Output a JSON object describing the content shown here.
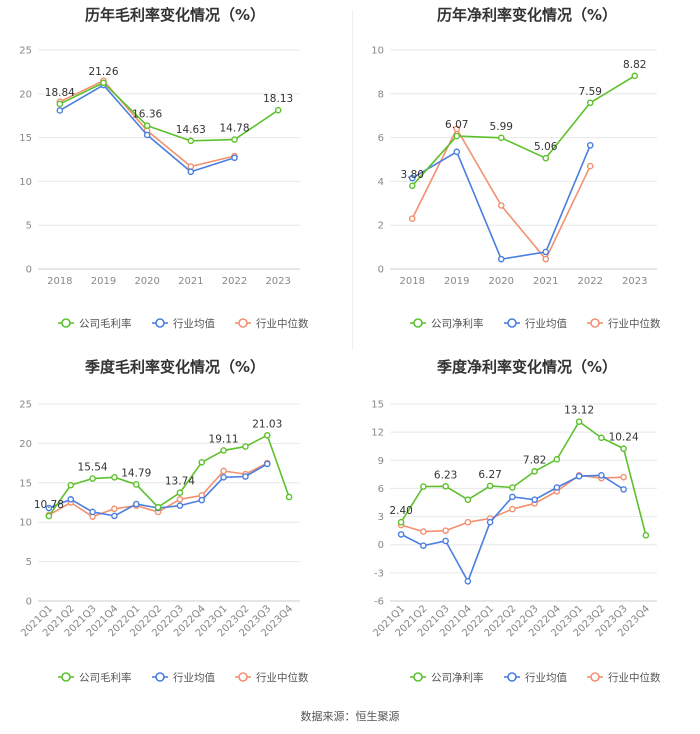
{
  "colors": {
    "company": "#5cc12b",
    "avg": "#4a7ee0",
    "median": "#f2906f",
    "grid": "#e8e8e8",
    "axis": "#cccccc"
  },
  "chart_data": [
    {
      "id": "annual-gross",
      "type": "line",
      "title": "历年毛利率变化情况（%）",
      "categories": [
        "2018",
        "2019",
        "2020",
        "2021",
        "2022",
        "2023"
      ],
      "ylim": [
        0,
        25
      ],
      "yticks": [
        0,
        5,
        10,
        15,
        20,
        25
      ],
      "ytick_labels": [
        "0",
        "5",
        "10",
        "15",
        "20",
        "25"
      ],
      "series": [
        {
          "key": "company",
          "name": "公司毛利率",
          "values": [
            18.84,
            21.26,
            16.36,
            14.63,
            14.78,
            18.13
          ],
          "labels": [
            "18.84",
            "21.26",
            "16.36",
            "14.63",
            "14.78",
            "18.13"
          ],
          "label_mask": [
            1,
            1,
            1,
            1,
            1,
            1
          ]
        },
        {
          "key": "avg",
          "name": "行业均值",
          "values": [
            18.1,
            21.0,
            15.3,
            11.1,
            12.7,
            null
          ]
        },
        {
          "key": "median",
          "name": "行业中位数",
          "values": [
            19.1,
            21.5,
            15.8,
            11.7,
            12.9,
            null
          ]
        }
      ]
    },
    {
      "id": "annual-net",
      "type": "line",
      "title": "历年净利率变化情况（%）",
      "categories": [
        "2018",
        "2019",
        "2020",
        "2021",
        "2022",
        "2023"
      ],
      "ylim": [
        0,
        10
      ],
      "yticks": [
        0,
        2,
        4,
        6,
        8,
        10
      ],
      "ytick_labels": [
        "0",
        "2",
        "4",
        "6",
        "8",
        "10"
      ],
      "series": [
        {
          "key": "company",
          "name": "公司净利率",
          "values": [
            3.8,
            6.07,
            5.99,
            5.06,
            7.59,
            8.82
          ],
          "labels": [
            "3.80",
            "6.07",
            "5.99",
            "5.06",
            "7.59",
            "8.82"
          ],
          "label_mask": [
            1,
            1,
            1,
            1,
            1,
            1
          ]
        },
        {
          "key": "avg",
          "name": "行业均值",
          "values": [
            4.15,
            5.35,
            0.45,
            0.78,
            5.65,
            null
          ]
        },
        {
          "key": "median",
          "name": "行业中位数",
          "values": [
            2.3,
            6.4,
            2.9,
            0.45,
            4.7,
            null
          ]
        }
      ]
    },
    {
      "id": "quarterly-gross",
      "type": "line",
      "title": "季度毛利率变化情况（%）",
      "categories": [
        "2021Q1",
        "2021Q2",
        "2021Q3",
        "2021Q4",
        "2022Q1",
        "2022Q2",
        "2022Q3",
        "2022Q4",
        "2023Q1",
        "2023Q2",
        "2023Q3",
        "2023Q4"
      ],
      "ylim": [
        0,
        25
      ],
      "yticks": [
        0,
        5,
        10,
        15,
        20,
        25
      ],
      "ytick_labels": [
        "0",
        "5",
        "10",
        "15",
        "20",
        "25"
      ],
      "series": [
        {
          "key": "company",
          "name": "公司毛利率",
          "values": [
            10.78,
            14.7,
            15.54,
            15.7,
            14.79,
            11.9,
            13.74,
            17.6,
            19.11,
            19.6,
            21.03,
            13.2
          ],
          "labels": [
            "10.78",
            "",
            "15.54",
            "",
            "14.79",
            "",
            "13.74",
            "",
            "19.11",
            "",
            "21.03",
            ""
          ],
          "label_mask": [
            1,
            0,
            1,
            0,
            1,
            0,
            1,
            0,
            1,
            0,
            1,
            0
          ]
        },
        {
          "key": "avg",
          "name": "行业均值",
          "values": [
            11.8,
            12.9,
            11.3,
            10.8,
            12.3,
            11.8,
            12.1,
            12.8,
            15.7,
            15.8,
            17.4,
            null
          ]
        },
        {
          "key": "median",
          "name": "行业中位数",
          "values": [
            10.9,
            12.5,
            10.7,
            11.7,
            12.1,
            11.3,
            12.9,
            13.4,
            16.5,
            16.1,
            17.5,
            null
          ]
        }
      ]
    },
    {
      "id": "quarterly-net",
      "type": "line",
      "title": "季度净利率变化情况（%）",
      "categories": [
        "2021Q1",
        "2021Q2",
        "2021Q3",
        "2021Q4",
        "2022Q1",
        "2022Q2",
        "2022Q3",
        "2022Q4",
        "2023Q1",
        "2023Q2",
        "2023Q3",
        "2023Q4"
      ],
      "ylim": [
        -6,
        15
      ],
      "yticks": [
        -6,
        -3,
        0,
        3,
        6,
        9,
        12,
        15
      ],
      "ytick_labels": [
        "-6",
        "-3",
        "0",
        "3",
        "6",
        "9",
        "12",
        "15"
      ],
      "series": [
        {
          "key": "company",
          "name": "公司净利率",
          "values": [
            2.4,
            6.2,
            6.23,
            4.8,
            6.27,
            6.1,
            7.82,
            9.1,
            13.12,
            11.4,
            10.24,
            1.0
          ],
          "labels": [
            "2.40",
            "",
            "6.23",
            "",
            "6.27",
            "",
            "7.82",
            "",
            "13.12",
            "",
            "10.24",
            ""
          ],
          "label_mask": [
            1,
            0,
            1,
            0,
            1,
            0,
            1,
            0,
            1,
            0,
            1,
            0
          ]
        },
        {
          "key": "avg",
          "name": "行业均值",
          "values": [
            1.1,
            -0.1,
            0.4,
            -3.9,
            2.4,
            5.1,
            4.8,
            6.1,
            7.3,
            7.4,
            5.9,
            null
          ]
        },
        {
          "key": "median",
          "name": "行业中位数",
          "values": [
            2.1,
            1.4,
            1.5,
            2.4,
            2.8,
            3.8,
            4.4,
            5.7,
            7.4,
            7.1,
            7.2,
            null
          ]
        }
      ]
    }
  ],
  "footer": {
    "source": "数据来源：恒生聚源"
  }
}
